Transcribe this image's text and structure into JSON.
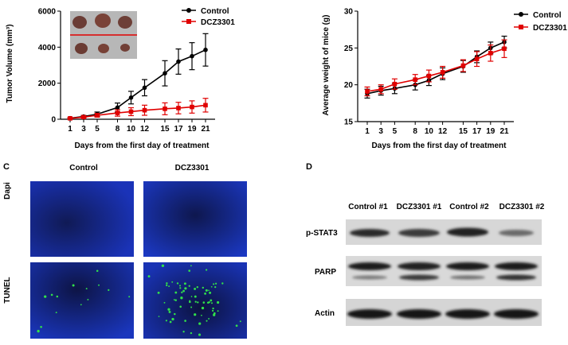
{
  "chart_data": [
    {
      "type": "line",
      "ylabel": "Tumor Volume (mm³)",
      "xlabel": "Days from the first day of treatment",
      "x": [
        1,
        3,
        5,
        8,
        10,
        12,
        15,
        17,
        19,
        21
      ],
      "xticks": [
        "1",
        "3",
        "5",
        "8",
        "10",
        "12",
        "15",
        "17",
        "19",
        "21"
      ],
      "ylim": [
        0,
        6000
      ],
      "yticks": [
        "0",
        "2000",
        "4000",
        "6000"
      ],
      "legend_position": "top-right",
      "series": [
        {
          "name": "Control",
          "color": "#000000",
          "marker": "circle",
          "values": [
            60,
            150,
            280,
            650,
            1200,
            1750,
            2550,
            3200,
            3500,
            3850
          ],
          "errors": [
            30,
            60,
            120,
            250,
            350,
            450,
            700,
            700,
            750,
            900
          ]
        },
        {
          "name": "DCZ3301",
          "color": "#e00000",
          "marker": "square",
          "values": [
            50,
            120,
            220,
            350,
            420,
            500,
            580,
            620,
            680,
            780
          ],
          "errors": [
            30,
            50,
            100,
            180,
            220,
            280,
            330,
            320,
            340,
            380
          ]
        }
      ]
    },
    {
      "type": "line",
      "ylabel": "Average weight of mice (g)",
      "xlabel": "Days from the first day of treatment",
      "x": [
        1,
        3,
        5,
        8,
        10,
        12,
        15,
        17,
        19,
        21
      ],
      "xticks": [
        "1",
        "3",
        "5",
        "8",
        "10",
        "12",
        "15",
        "17",
        "19",
        "21"
      ],
      "ylim": [
        15,
        30
      ],
      "yticks": [
        "15",
        "20",
        "25",
        "30"
      ],
      "legend_position": "top-right",
      "series": [
        {
          "name": "Control",
          "color": "#000000",
          "marker": "circle",
          "values": [
            18.8,
            19.2,
            19.5,
            20.0,
            20.6,
            21.5,
            22.5,
            23.8,
            25.0,
            25.8
          ],
          "errors": [
            0.6,
            0.6,
            0.7,
            0.7,
            0.7,
            0.8,
            0.8,
            0.8,
            0.8,
            0.8
          ]
        },
        {
          "name": "DCZ3301",
          "color": "#e00000",
          "marker": "square",
          "values": [
            19.1,
            19.4,
            20.1,
            20.7,
            21.2,
            21.7,
            22.6,
            23.5,
            24.3,
            24.9
          ],
          "errors": [
            0.6,
            0.6,
            0.7,
            0.7,
            0.8,
            0.8,
            0.8,
            1.0,
            1.1,
            1.2
          ]
        }
      ]
    }
  ],
  "panel_c": {
    "label": "C",
    "col_control": "Control",
    "col_dcz": "DCZ3301",
    "row_dapi": "Dapi",
    "row_tunel": "TUNEL"
  },
  "panel_d": {
    "label": "D",
    "lanes": [
      "Control #1",
      "DCZ3301 #1",
      "Control #2",
      "DCZ3301 #2"
    ],
    "bands": [
      "p-STAT3",
      "PARP",
      "Actin"
    ]
  }
}
